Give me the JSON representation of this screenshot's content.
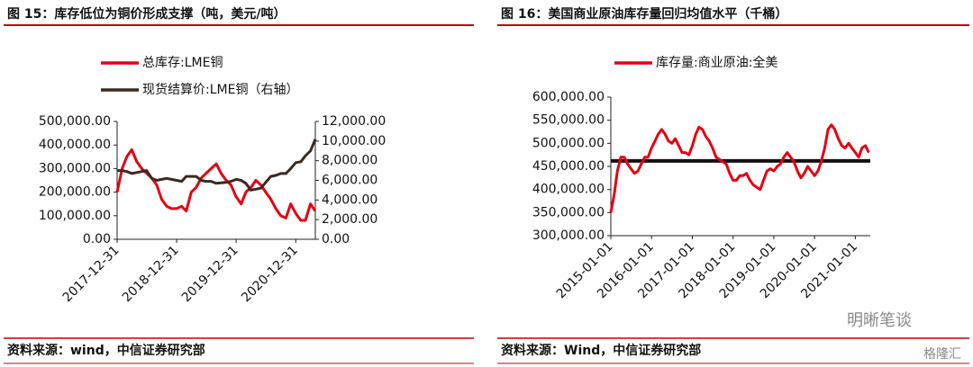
{
  "chart_data": [
    {
      "type": "line",
      "title": "图 15：库存低位为铜价形成支撑（吨，美元/吨）",
      "source": "资料来源：wind，中信证券研究部",
      "x": [
        "2017-12-31",
        "2018-01-31",
        "2018-02-28",
        "2018-03-31",
        "2018-04-30",
        "2018-05-31",
        "2018-06-30",
        "2018-07-31",
        "2018-08-31",
        "2018-09-30",
        "2018-10-31",
        "2018-11-30",
        "2018-12-31",
        "2019-01-31",
        "2019-02-28",
        "2019-03-31",
        "2019-04-30",
        "2019-05-31",
        "2019-06-30",
        "2019-07-31",
        "2019-08-31",
        "2019-09-30",
        "2019-10-31",
        "2019-11-30",
        "2019-12-31",
        "2020-01-31",
        "2020-02-29",
        "2020-03-31",
        "2020-04-30",
        "2020-05-31",
        "2020-06-30",
        "2020-07-31",
        "2020-08-31",
        "2020-09-30",
        "2020-10-31",
        "2020-11-30",
        "2020-12-31",
        "2021-01-31",
        "2021-02-28",
        "2021-03-31",
        "2021-04-30"
      ],
      "series": [
        {
          "name": "总库存:LME铜",
          "color": "#e60012",
          "axis": "y",
          "values": [
            200000,
            300000,
            350000,
            380000,
            330000,
            300000,
            280000,
            260000,
            230000,
            170000,
            140000,
            130000,
            130000,
            140000,
            120000,
            200000,
            220000,
            260000,
            280000,
            300000,
            320000,
            280000,
            250000,
            230000,
            180000,
            150000,
            200000,
            220000,
            250000,
            230000,
            200000,
            170000,
            130000,
            100000,
            90000,
            150000,
            110000,
            80000,
            80000,
            150000,
            120000
          ]
        },
        {
          "name": "现货结算价:LME铜（右轴）",
          "color": "#3a2a1f",
          "axis": "y2",
          "values": [
            7000,
            7000,
            6900,
            6700,
            6800,
            6900,
            7000,
            6200,
            6000,
            6100,
            6200,
            6100,
            6000,
            5900,
            6400,
            6400,
            6400,
            6000,
            5900,
            5900,
            5700,
            5750,
            5800,
            5900,
            6100,
            6000,
            5700,
            5000,
            5100,
            5200,
            5800,
            6400,
            6500,
            6700,
            6700,
            7200,
            7800,
            7900,
            8500,
            9000,
            10200
          ]
        }
      ],
      "xlim": [
        "2017-12-31",
        "2021-04-30"
      ],
      "xticks": [
        "2017-12-31",
        "2018-12-31",
        "2019-12-31",
        "2020-12-31"
      ],
      "ylim": [
        0,
        500000
      ],
      "yticks": [
        {
          "value": 0,
          "label": "0.00"
        },
        {
          "value": 100000,
          "label": "100,000.00"
        },
        {
          "value": 200000,
          "label": "200,000.00"
        },
        {
          "value": 300000,
          "label": "300,000.00"
        },
        {
          "value": 400000,
          "label": "400,000.00"
        },
        {
          "value": 500000,
          "label": "500,000.00"
        }
      ],
      "y2lim": [
        0,
        12000
      ],
      "y2ticks": [
        {
          "value": 0,
          "label": "0.00"
        },
        {
          "value": 2000,
          "label": "2,000.00"
        },
        {
          "value": 4000,
          "label": "4,000.00"
        },
        {
          "value": 6000,
          "label": "6,000.00"
        },
        {
          "value": 8000,
          "label": "8,000.00"
        },
        {
          "value": 10000,
          "label": "10,000.00"
        },
        {
          "value": 12000,
          "label": "12,000.00"
        }
      ]
    },
    {
      "type": "line",
      "title": "图 16：美国商业原油库存量回归均值水平（千桶）",
      "source": "资料来源：Wind，中信证券研究部",
      "x": [
        "2015-01-01",
        "2015-02-01",
        "2015-03-01",
        "2015-04-01",
        "2015-05-01",
        "2015-06-01",
        "2015-07-01",
        "2015-08-01",
        "2015-09-01",
        "2015-10-01",
        "2015-11-01",
        "2015-12-01",
        "2016-01-01",
        "2016-02-01",
        "2016-03-01",
        "2016-04-01",
        "2016-05-01",
        "2016-06-01",
        "2016-07-01",
        "2016-08-01",
        "2016-09-01",
        "2016-10-01",
        "2016-11-01",
        "2016-12-01",
        "2017-01-01",
        "2017-02-01",
        "2017-03-01",
        "2017-04-01",
        "2017-05-01",
        "2017-06-01",
        "2017-07-01",
        "2017-08-01",
        "2017-09-01",
        "2017-10-01",
        "2017-11-01",
        "2017-12-01",
        "2018-01-01",
        "2018-02-01",
        "2018-03-01",
        "2018-04-01",
        "2018-05-01",
        "2018-06-01",
        "2018-07-01",
        "2018-08-01",
        "2018-09-01",
        "2018-10-01",
        "2018-11-01",
        "2018-12-01",
        "2019-01-01",
        "2019-02-01",
        "2019-03-01",
        "2019-04-01",
        "2019-05-01",
        "2019-06-01",
        "2019-07-01",
        "2019-08-01",
        "2019-09-01",
        "2019-10-01",
        "2019-11-01",
        "2019-12-01",
        "2020-01-01",
        "2020-02-01",
        "2020-03-01",
        "2020-04-01",
        "2020-05-01",
        "2020-06-01",
        "2020-07-01",
        "2020-08-01",
        "2020-09-01",
        "2020-10-01",
        "2020-11-01",
        "2020-12-01",
        "2021-01-01",
        "2021-02-01",
        "2021-03-01",
        "2021-04-01",
        "2021-05-01"
      ],
      "series": [
        {
          "name": "库存量:商业原油:全美",
          "color": "#e60012",
          "axis": "y",
          "values": [
            350000,
            390000,
            440000,
            470000,
            470000,
            455000,
            445000,
            435000,
            440000,
            455000,
            470000,
            470000,
            490000,
            505000,
            520000,
            530000,
            520000,
            505000,
            500000,
            510000,
            495000,
            480000,
            480000,
            475000,
            495000,
            520000,
            535000,
            530000,
            515000,
            505000,
            490000,
            470000,
            465000,
            460000,
            455000,
            435000,
            420000,
            420000,
            430000,
            430000,
            435000,
            420000,
            410000,
            405000,
            400000,
            420000,
            440000,
            445000,
            440000,
            450000,
            455000,
            470000,
            480000,
            470000,
            460000,
            440000,
            425000,
            435000,
            450000,
            440000,
            430000,
            440000,
            460000,
            490000,
            530000,
            540000,
            530000,
            510000,
            495000,
            490000,
            500000,
            490000,
            480000,
            470000,
            490000,
            495000,
            480000
          ]
        }
      ],
      "hline": {
        "value": 462000,
        "color": "#111111"
      },
      "xlim": [
        "2015-01-01",
        "2021-05-15"
      ],
      "xticks": [
        "2015-01-01",
        "2016-01-01",
        "2017-01-01",
        "2018-01-01",
        "2019-01-01",
        "2020-01-01",
        "2021-01-01"
      ],
      "ylim": [
        300000,
        600000
      ],
      "yticks": [
        {
          "value": 300000,
          "label": "300,000.00"
        },
        {
          "value": 350000,
          "label": "350,000.00"
        },
        {
          "value": 400000,
          "label": "400,000.00"
        },
        {
          "value": 450000,
          "label": "450,000.00"
        },
        {
          "value": 500000,
          "label": "500,000.00"
        },
        {
          "value": 550000,
          "label": "550,000.00"
        },
        {
          "value": 600000,
          "label": "600,000.00"
        }
      ]
    }
  ],
  "watermarks": [
    "明晰笔谈",
    "格隆汇"
  ]
}
